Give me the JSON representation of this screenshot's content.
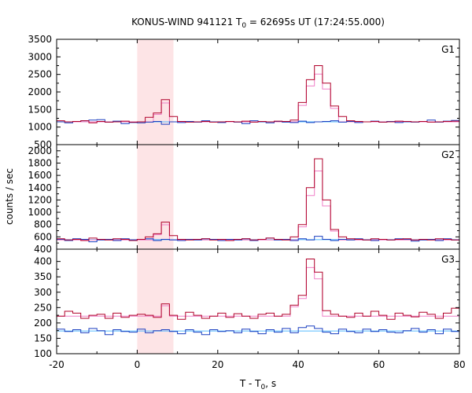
{
  "chart_data": {
    "type": "line",
    "title_main": "KONUS-WIND 941121 T",
    "title_sub": "0",
    "title_rest": " = 62695s UT (17:24:55.000)",
    "xlabel_main": "T - T",
    "xlabel_sub": "0",
    "xlabel_rest": ", s",
    "ylabel": "counts / sec",
    "xlim": [
      -20,
      80
    ],
    "x_ticks": [
      -20,
      0,
      20,
      40,
      60,
      80
    ],
    "highlight_interval": [
      0,
      9
    ],
    "colors": {
      "burst_curve": "#b0002a",
      "burst_fit": "#f080c8",
      "bg_curve": "#1a3fc0",
      "bg_fit": "#55bbff",
      "highlight": "#fde4e6"
    },
    "bin_edges": [
      -20,
      -18,
      -16,
      -14,
      -12,
      -10,
      -8,
      -6,
      -4,
      -2,
      0,
      2,
      4,
      6,
      8,
      10,
      12,
      14,
      16,
      18,
      20,
      22,
      24,
      26,
      28,
      30,
      32,
      34,
      36,
      38,
      40,
      42,
      44,
      46,
      48,
      50,
      52,
      54,
      56,
      58,
      60,
      62,
      64,
      66,
      68,
      70,
      72,
      74,
      76,
      78,
      80
    ],
    "panels": [
      {
        "name": "G1",
        "ylim": [
          500,
          3500
        ],
        "y_ticks": [
          500,
          1000,
          1500,
          2000,
          2500,
          3000,
          3500
        ],
        "background_level": 1150,
        "burst_counts": [
          1180,
          1150,
          1160,
          1180,
          1120,
          1160,
          1140,
          1150,
          1170,
          1140,
          1150,
          1280,
          1400,
          1780,
          1300,
          1160,
          1140,
          1150,
          1160,
          1140,
          1150,
          1160,
          1150,
          1170,
          1140,
          1160,
          1150,
          1170,
          1160,
          1200,
          1700,
          2350,
          2750,
          2250,
          1600,
          1300,
          1180,
          1160,
          1150,
          1160,
          1140,
          1150,
          1170,
          1160,
          1150,
          1160,
          1140,
          1150,
          1160,
          1170
        ],
        "background_counts": [
          1150,
          1120,
          1160,
          1180,
          1200,
          1210,
          1140,
          1170,
          1100,
          1130,
          1120,
          1140,
          1160,
          1080,
          1150,
          1130,
          1160,
          1140,
          1180,
          1150,
          1130,
          1160,
          1140,
          1100,
          1180,
          1150,
          1120,
          1160,
          1140,
          1130,
          1170,
          1130,
          1150,
          1160,
          1180,
          1140,
          1160,
          1130,
          1150,
          1170,
          1140,
          1160,
          1130,
          1150,
          1140,
          1160,
          1200,
          1140,
          1170,
          1190
        ]
      },
      {
        "name": "G2",
        "ylim": [
          400,
          2100
        ],
        "y_ticks": [
          400,
          600,
          800,
          1000,
          1200,
          1400,
          1600,
          1800,
          2000
        ],
        "background_level": 550,
        "burst_counts": [
          570,
          550,
          560,
          540,
          580,
          560,
          550,
          570,
          560,
          540,
          560,
          600,
          650,
          840,
          620,
          560,
          550,
          560,
          570,
          550,
          560,
          540,
          560,
          570,
          550,
          560,
          580,
          560,
          550,
          600,
          800,
          1400,
          1870,
          1200,
          720,
          600,
          570,
          560,
          550,
          570,
          560,
          550,
          560,
          570,
          550,
          560,
          550,
          570,
          560,
          550
        ],
        "background_counts": [
          560,
          540,
          570,
          560,
          520,
          550,
          560,
          540,
          570,
          550,
          560,
          570,
          540,
          560,
          550,
          540,
          560,
          550,
          570,
          560,
          540,
          560,
          550,
          570,
          540,
          560,
          580,
          550,
          560,
          540,
          570,
          550,
          610,
          560,
          540,
          560,
          550,
          570,
          550,
          540,
          560,
          550,
          570,
          560,
          530,
          550,
          560,
          540,
          570,
          550
        ]
      },
      {
        "name": "G3",
        "ylim": [
          100,
          440
        ],
        "y_ticks": [
          100,
          150,
          200,
          250,
          300,
          350,
          400
        ],
        "background_level": 222,
        "burst_counts": [
          222,
          238,
          232,
          215,
          225,
          228,
          215,
          232,
          218,
          225,
          228,
          225,
          218,
          262,
          225,
          212,
          235,
          225,
          215,
          222,
          232,
          218,
          230,
          222,
          215,
          228,
          232,
          222,
          228,
          258,
          290,
          408,
          365,
          240,
          228,
          222,
          218,
          232,
          222,
          238,
          225,
          212,
          232,
          225,
          220,
          235,
          228,
          215,
          232,
          248
        ],
        "background_counts": [
          180,
          172,
          178,
          168,
          182,
          175,
          162,
          178,
          172,
          170,
          180,
          168,
          175,
          178,
          172,
          165,
          178,
          170,
          162,
          178,
          172,
          175,
          168,
          180,
          172,
          165,
          178,
          170,
          182,
          168,
          185,
          190,
          182,
          170,
          165,
          180,
          172,
          168,
          180,
          172,
          178,
          170,
          168,
          175,
          182,
          170,
          178,
          165,
          180,
          172
        ]
      }
    ]
  }
}
